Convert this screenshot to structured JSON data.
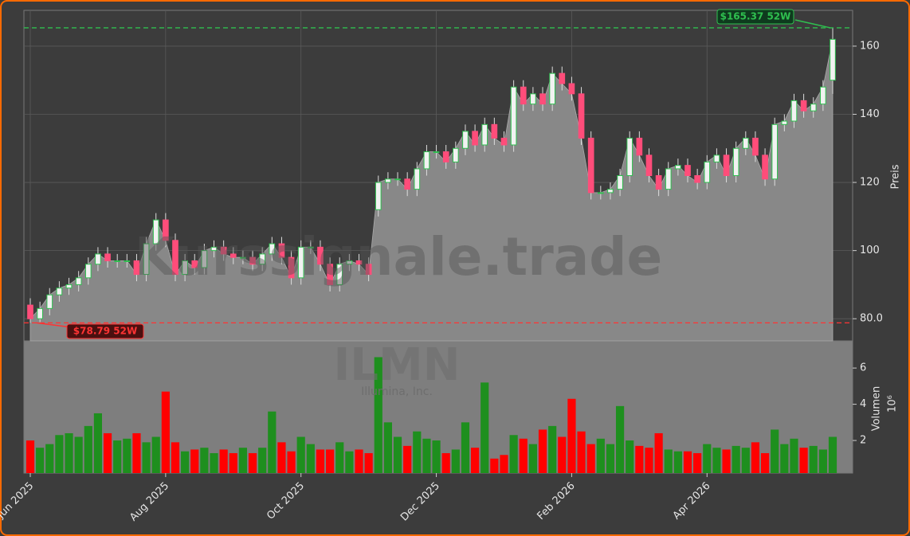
{
  "chart_data": {
    "type": "candlestick",
    "watermark": "Kurssignale.trade",
    "ticker": "ILMN",
    "company": "Illumina, Inc.",
    "categories": [
      "Jun 2025",
      null,
      null,
      null,
      null,
      null,
      null,
      null,
      null,
      null,
      null,
      null,
      null,
      null,
      "Aug 2025",
      null,
      null,
      null,
      null,
      null,
      null,
      null,
      null,
      null,
      null,
      null,
      null,
      null,
      "Oct 2025",
      null,
      null,
      null,
      null,
      null,
      null,
      null,
      null,
      null,
      null,
      null,
      null,
      null,
      "Dec 2025",
      null,
      null,
      null,
      null,
      null,
      null,
      null,
      null,
      null,
      null,
      null,
      null,
      null,
      "Feb 2026",
      null,
      null,
      null,
      null,
      null,
      null,
      null,
      null,
      null,
      null,
      null,
      null,
      null,
      "Apr 2026",
      null,
      null,
      null,
      null,
      null,
      null,
      null,
      null,
      null,
      null,
      null,
      null,
      null
    ],
    "open": [
      84,
      80,
      83,
      87,
      89,
      90,
      92,
      96,
      99,
      97,
      97,
      97,
      93,
      102,
      109,
      103,
      93,
      97,
      95,
      100,
      101,
      99,
      98,
      98,
      96,
      99,
      102,
      98,
      92,
      101,
      101,
      96,
      90,
      96,
      97,
      96,
      112,
      120,
      121,
      121,
      118,
      124,
      129,
      129,
      126,
      130,
      135,
      131,
      137,
      133,
      131,
      148,
      143,
      146,
      143,
      152,
      149,
      146,
      133,
      117,
      117,
      118,
      122,
      133,
      128,
      122,
      118,
      124,
      125,
      122,
      120,
      126,
      128,
      122,
      130,
      133,
      128,
      121,
      137,
      138,
      144,
      141,
      143,
      150
    ],
    "high": [
      86,
      85,
      89,
      91,
      92,
      94,
      98,
      101,
      101,
      99,
      99,
      99,
      104,
      111,
      111,
      105,
      99,
      99,
      102,
      103,
      103,
      101,
      100,
      100,
      101,
      104,
      104,
      100,
      103,
      103,
      103,
      98,
      98,
      99,
      99,
      98,
      122,
      123,
      123,
      123,
      126,
      131,
      131,
      131,
      132,
      137,
      137,
      139,
      139,
      135,
      150,
      150,
      148,
      148,
      154,
      154,
      151,
      148,
      135,
      119,
      120,
      124,
      135,
      135,
      130,
      124,
      126,
      127,
      127,
      124,
      128,
      130,
      130,
      132,
      135,
      135,
      130,
      139,
      140,
      146,
      146,
      145,
      150,
      165.37
    ],
    "low": [
      78.79,
      79,
      81,
      85,
      87,
      88,
      90,
      94,
      95,
      95,
      95,
      91,
      91,
      100,
      101,
      91,
      91,
      93,
      93,
      98,
      97,
      96,
      96,
      94,
      94,
      97,
      96,
      90,
      90,
      99,
      94,
      88,
      88,
      94,
      94,
      91,
      110,
      118,
      119,
      116,
      116,
      122,
      127,
      124,
      124,
      128,
      129,
      129,
      131,
      129,
      129,
      141,
      141,
      141,
      141,
      147,
      144,
      131,
      115,
      115,
      115,
      116,
      120,
      126,
      120,
      116,
      116,
      122,
      120,
      118,
      118,
      124,
      120,
      120,
      128,
      126,
      119,
      119,
      135,
      136,
      139,
      139,
      141,
      146
    ],
    "close": [
      80,
      83,
      87,
      89,
      90,
      92,
      96,
      99,
      97,
      97,
      97,
      93,
      102,
      109,
      103,
      93,
      97,
      95,
      100,
      101,
      99,
      98,
      98,
      96,
      99,
      102,
      98,
      92,
      101,
      101,
      96,
      90,
      96,
      97,
      96,
      93,
      120,
      121,
      121,
      118,
      124,
      129,
      129,
      126,
      130,
      135,
      131,
      137,
      133,
      131,
      148,
      143,
      146,
      143,
      152,
      149,
      146,
      133,
      117,
      117,
      118,
      122,
      133,
      128,
      122,
      118,
      124,
      125,
      122,
      120,
      126,
      128,
      122,
      130,
      133,
      128,
      121,
      137,
      138,
      144,
      141,
      143,
      148,
      162
    ],
    "volume": [
      2.0,
      1.6,
      1.8,
      2.3,
      2.4,
      2.2,
      2.8,
      3.5,
      2.4,
      2.0,
      2.1,
      2.4,
      1.9,
      2.2,
      4.7,
      1.9,
      1.4,
      1.5,
      1.6,
      1.3,
      1.5,
      1.3,
      1.6,
      1.3,
      1.6,
      3.6,
      1.9,
      1.4,
      2.2,
      1.8,
      1.5,
      1.5,
      1.9,
      1.4,
      1.5,
      1.3,
      6.6,
      3.0,
      2.2,
      1.7,
      2.5,
      2.1,
      2.0,
      1.3,
      1.5,
      3.0,
      1.6,
      5.2,
      1.0,
      1.2,
      2.3,
      2.1,
      1.8,
      2.6,
      2.8,
      2.2,
      4.3,
      2.5,
      1.8,
      2.1,
      1.8,
      3.9,
      2.0,
      1.7,
      1.6,
      2.4,
      1.5,
      1.4,
      1.4,
      1.3,
      1.8,
      1.6,
      1.5,
      1.7,
      1.6,
      1.9,
      1.3,
      2.6,
      1.8,
      2.1,
      1.6,
      1.7,
      1.5,
      2.2
    ],
    "up_color": "#2fbf4f",
    "down_color": "#ff4d7a",
    "volume_up_color": "#1e8f1e",
    "volume_down_color": "#ff0000",
    "area_color": "#888888",
    "ylabel": "Preis",
    "ylim": [
      73.5,
      170.5
    ],
    "yticks": [
      {
        "value": 80,
        "label": "80.0"
      },
      100,
      120,
      140,
      160
    ],
    "volume_ylabel": "Volumen",
    "volume_exponent": "10⁶",
    "volume_ylim": [
      0.2,
      7.5
    ],
    "volume_yticks": [
      2,
      4,
      6
    ],
    "grid": true,
    "annotations": [
      {
        "text": "$165.37 52W",
        "value": 165.37,
        "color": "#2fbf4f"
      },
      {
        "text": "$78.79 52W",
        "value": 78.79,
        "color": "#ff3333"
      }
    ]
  }
}
